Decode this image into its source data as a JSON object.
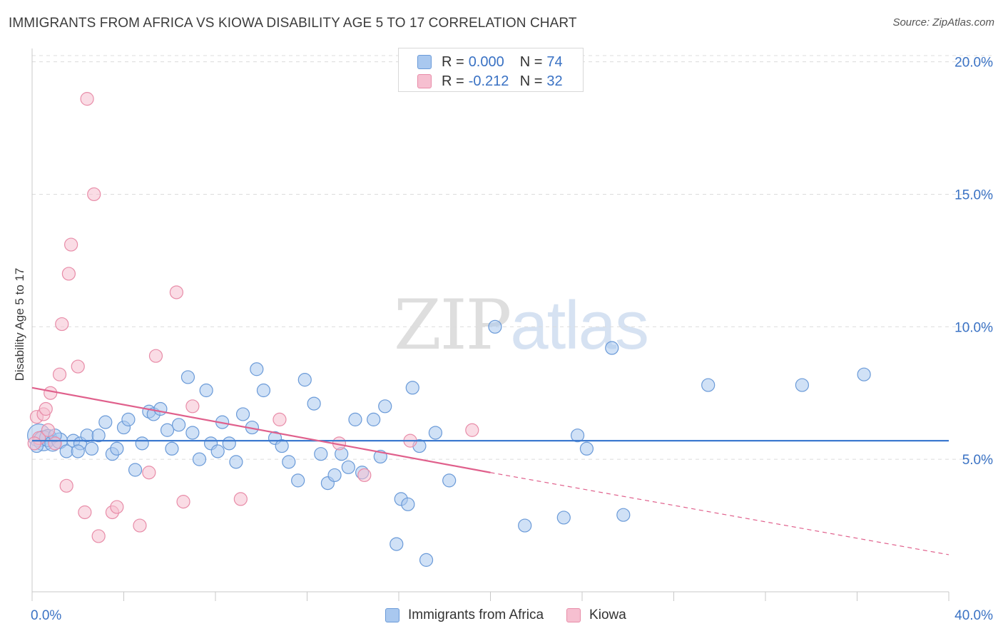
{
  "header": {
    "title": "IMMIGRANTS FROM AFRICA VS KIOWA DISABILITY AGE 5 TO 17 CORRELATION CHART",
    "source": "Source: ZipAtlas.com"
  },
  "watermark": {
    "zip": "ZIP",
    "atlas": "atlas"
  },
  "legend_top": {
    "rows": [
      {
        "r_label": "R =",
        "r_value": "0.000",
        "n_label": "N =",
        "n_value": "74"
      },
      {
        "r_label": "R =",
        "r_value": "-0.212",
        "n_label": "N =",
        "n_value": "32"
      }
    ]
  },
  "legend_bottom": {
    "series1": "Immigrants from Africa",
    "series2": "Kiowa"
  },
  "colors": {
    "blue_fill": "#a9c8ef",
    "blue_stroke": "#6a9ad8",
    "blue_line": "#3d7ad0",
    "pink_fill": "#f6bfd0",
    "pink_stroke": "#e88ca8",
    "pink_line": "#e0608c",
    "axis_text": "#3a72c4",
    "grid": "#dcdcdc"
  },
  "chart_data": {
    "type": "scatter",
    "title": "IMMIGRANTS FROM AFRICA VS KIOWA DISABILITY AGE 5 TO 17 CORRELATION CHART",
    "xlabel": "",
    "ylabel": "Disability Age 5 to 17",
    "xlim": [
      0,
      40
    ],
    "ylim": [
      0,
      20.5
    ],
    "x_tick_labels": [
      "0.0%",
      "40.0%"
    ],
    "y_ticks": [
      5,
      10,
      15,
      20
    ],
    "y_tick_labels": [
      "5.0%",
      "10.0%",
      "15.0%",
      "20.0%"
    ],
    "grid": true,
    "legend_position": "top-center",
    "series": [
      {
        "name": "Immigrants from Africa",
        "r": 0.0,
        "n": 74,
        "trend": {
          "x": [
            0,
            40
          ],
          "y": [
            5.7,
            5.7
          ]
        },
        "points": [
          [
            0.3,
            5.9,
            16
          ],
          [
            0.5,
            5.7,
            14
          ],
          [
            0.7,
            5.8,
            12
          ],
          [
            0.9,
            5.6,
            11
          ],
          [
            1.2,
            5.7,
            11
          ],
          [
            1.5,
            5.3,
            9
          ],
          [
            1.8,
            5.7,
            9
          ],
          [
            2.1,
            5.6,
            9
          ],
          [
            2.4,
            5.9,
            9
          ],
          [
            2.6,
            5.4,
            9
          ],
          [
            2.9,
            5.9,
            9
          ],
          [
            3.2,
            6.4,
            9
          ],
          [
            3.5,
            5.2,
            9
          ],
          [
            3.7,
            5.4,
            9
          ],
          [
            4.0,
            6.2,
            9
          ],
          [
            4.2,
            6.5,
            9
          ],
          [
            4.5,
            4.6,
            9
          ],
          [
            4.8,
            5.6,
            9
          ],
          [
            5.1,
            6.8,
            9
          ],
          [
            5.3,
            6.7,
            9
          ],
          [
            5.6,
            6.9,
            9
          ],
          [
            5.9,
            6.1,
            9
          ],
          [
            6.1,
            5.4,
            9
          ],
          [
            6.4,
            6.3,
            9
          ],
          [
            6.8,
            8.1,
            9
          ],
          [
            7.0,
            6.0,
            9
          ],
          [
            7.3,
            5.0,
            9
          ],
          [
            7.6,
            7.6,
            9
          ],
          [
            7.8,
            5.6,
            9
          ],
          [
            8.1,
            5.3,
            9
          ],
          [
            8.3,
            6.4,
            9
          ],
          [
            8.6,
            5.6,
            9
          ],
          [
            8.9,
            4.9,
            9
          ],
          [
            9.2,
            6.7,
            9
          ],
          [
            9.6,
            6.2,
            9
          ],
          [
            9.8,
            8.4,
            9
          ],
          [
            10.1,
            7.6,
            9
          ],
          [
            10.6,
            5.8,
            9
          ],
          [
            10.9,
            5.5,
            9
          ],
          [
            11.2,
            4.9,
            9
          ],
          [
            11.6,
            4.2,
            9
          ],
          [
            11.9,
            8.0,
            9
          ],
          [
            12.3,
            7.1,
            9
          ],
          [
            12.6,
            5.2,
            9
          ],
          [
            12.9,
            4.1,
            9
          ],
          [
            13.2,
            4.4,
            9
          ],
          [
            13.5,
            5.2,
            9
          ],
          [
            13.8,
            4.7,
            9
          ],
          [
            14.1,
            6.5,
            9
          ],
          [
            14.4,
            4.5,
            9
          ],
          [
            14.9,
            6.5,
            9
          ],
          [
            15.2,
            5.1,
            9
          ],
          [
            15.4,
            7.0,
            9
          ],
          [
            15.9,
            1.8,
            9
          ],
          [
            16.1,
            3.5,
            9
          ],
          [
            16.4,
            3.3,
            9
          ],
          [
            16.6,
            7.7,
            9
          ],
          [
            16.9,
            5.5,
            9
          ],
          [
            17.2,
            1.2,
            9
          ],
          [
            17.6,
            6.0,
            9
          ],
          [
            18.2,
            4.2,
            9
          ],
          [
            20.2,
            10.0,
            9
          ],
          [
            21.5,
            2.5,
            9
          ],
          [
            23.2,
            2.8,
            9
          ],
          [
            23.8,
            5.9,
            9
          ],
          [
            24.2,
            5.4,
            9
          ],
          [
            25.3,
            9.2,
            9
          ],
          [
            25.8,
            2.9,
            9
          ],
          [
            29.5,
            7.8,
            9
          ],
          [
            33.6,
            7.8,
            9
          ],
          [
            36.3,
            8.2,
            9
          ],
          [
            0.2,
            5.5,
            9
          ],
          [
            1.0,
            5.9,
            9
          ],
          [
            2.0,
            5.3,
            9
          ]
        ]
      },
      {
        "name": "Kiowa",
        "r": -0.212,
        "n": 32,
        "trend": {
          "x": [
            0,
            20
          ],
          "y": [
            7.7,
            4.5
          ],
          "dashed_extension": {
            "x": [
              20,
              40
            ],
            "y": [
              4.5,
              1.4
            ]
          }
        },
        "points": [
          [
            0.2,
            6.6,
            9
          ],
          [
            0.3,
            5.8,
            9
          ],
          [
            0.5,
            6.7,
            9
          ],
          [
            0.6,
            6.9,
            9
          ],
          [
            0.7,
            6.1,
            9
          ],
          [
            0.8,
            7.5,
            9
          ],
          [
            1.0,
            5.6,
            9
          ],
          [
            1.2,
            8.2,
            9
          ],
          [
            1.3,
            10.1,
            9
          ],
          [
            1.5,
            4.0,
            9
          ],
          [
            1.6,
            12.0,
            9
          ],
          [
            1.7,
            13.1,
            9
          ],
          [
            2.0,
            8.5,
            9
          ],
          [
            2.3,
            3.0,
            9
          ],
          [
            2.4,
            18.6,
            9
          ],
          [
            2.7,
            15.0,
            9
          ],
          [
            2.9,
            2.1,
            9
          ],
          [
            3.5,
            3.0,
            9
          ],
          [
            3.7,
            3.2,
            9
          ],
          [
            4.7,
            2.5,
            9
          ],
          [
            5.1,
            4.5,
            9
          ],
          [
            5.4,
            8.9,
            9
          ],
          [
            6.3,
            11.3,
            9
          ],
          [
            6.6,
            3.4,
            9
          ],
          [
            7.0,
            7.0,
            9
          ],
          [
            9.1,
            3.5,
            9
          ],
          [
            10.8,
            6.5,
            9
          ],
          [
            13.4,
            5.6,
            9
          ],
          [
            14.5,
            4.4,
            9
          ],
          [
            16.5,
            5.7,
            9
          ],
          [
            19.2,
            6.1,
            9
          ],
          [
            0.1,
            5.6,
            9
          ]
        ]
      }
    ]
  }
}
